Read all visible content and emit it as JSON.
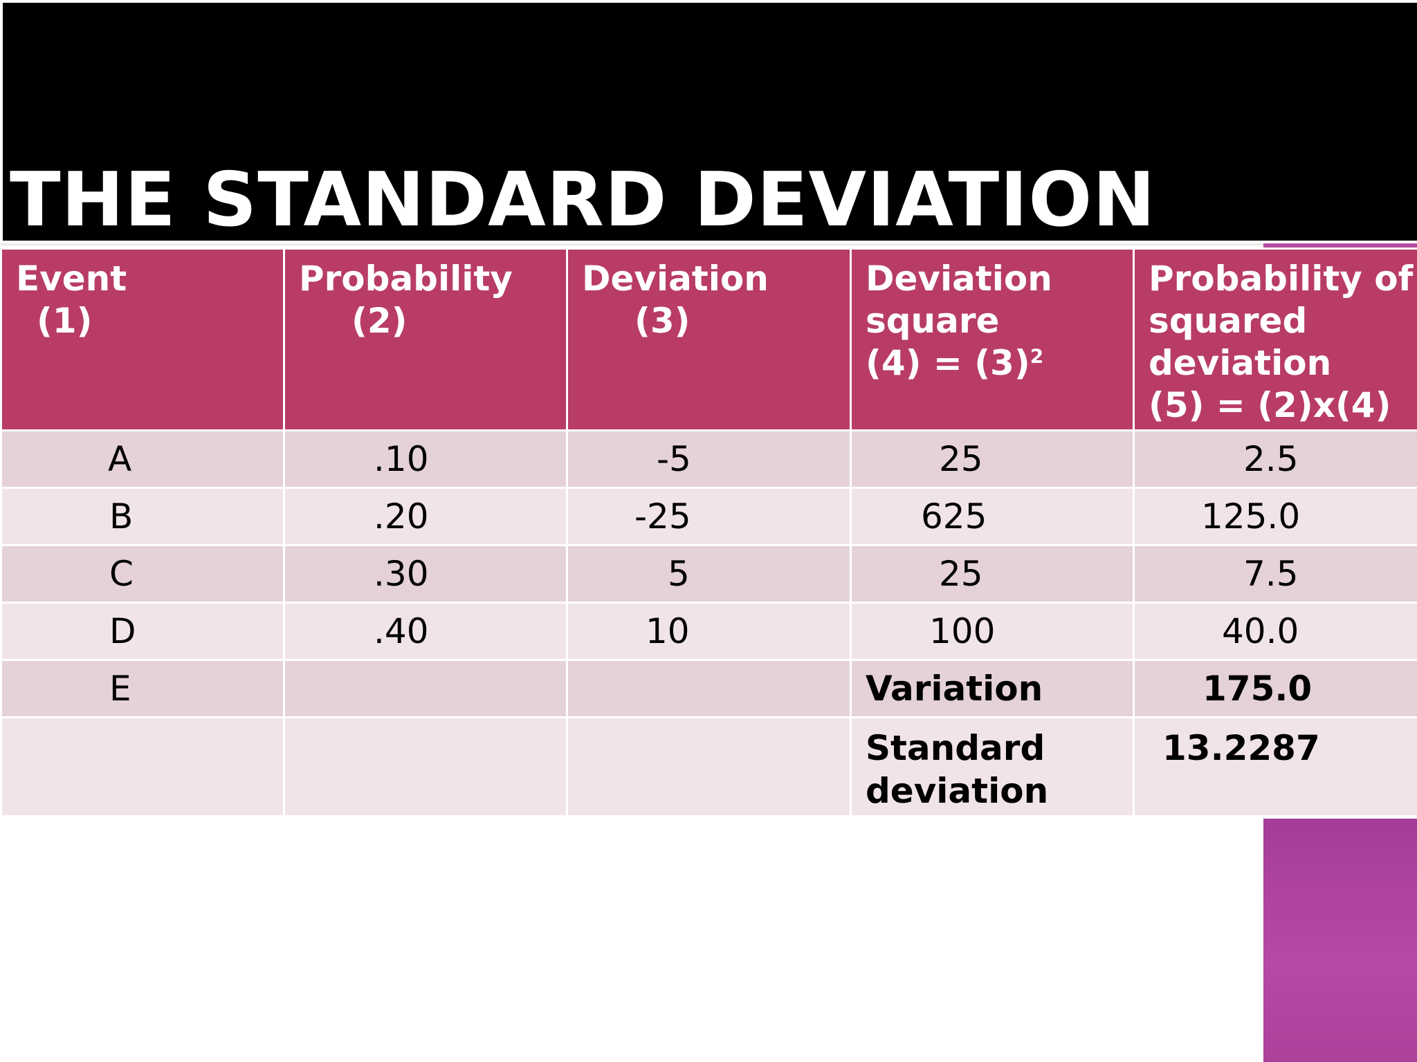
{
  "slide": {
    "title": "THE STANDARD DEVIATION"
  },
  "table": {
    "headers": [
      {
        "line1": "Event",
        "line2": "(1)"
      },
      {
        "line1": "Probability",
        "line2": "(2)"
      },
      {
        "line1": "Deviation",
        "line2": "(3)"
      },
      {
        "line1": "Deviation",
        "line2": "square",
        "line3": "(4) = (3)",
        "sup": "2"
      },
      {
        "line1": "Probability of",
        "line2": "squared",
        "line3": "deviation",
        "line4": "(5) = (2)x(4)"
      }
    ],
    "rows": [
      {
        "event": "A",
        "probability": ".10",
        "deviation": "-5",
        "deviation_square": "25",
        "prob_sq_dev": "2.5"
      },
      {
        "event": "B",
        "probability": ".20",
        "deviation": "-25",
        "deviation_square": "625",
        "prob_sq_dev": "125.0"
      },
      {
        "event": "C",
        "probability": ".30",
        "deviation": "5",
        "deviation_square": "25",
        "prob_sq_dev": "7.5"
      },
      {
        "event": "D",
        "probability": ".40",
        "deviation": "10",
        "deviation_square": "100",
        "prob_sq_dev": "40.0"
      },
      {
        "event": "E",
        "probability": "",
        "deviation": "",
        "deviation_square": "Variation",
        "prob_sq_dev": "175.0"
      },
      {
        "event": "",
        "probability": "",
        "deviation": "",
        "deviation_square_line1": "Standard",
        "deviation_square_line2": "deviation",
        "prob_sq_dev": "13.2287"
      }
    ]
  },
  "colors": {
    "title_bar": "#000000",
    "header_fill": "#b83c66",
    "row_dark": "#e4d2d7",
    "row_light": "#f1e4e8",
    "accent_square": "#b549a6"
  }
}
